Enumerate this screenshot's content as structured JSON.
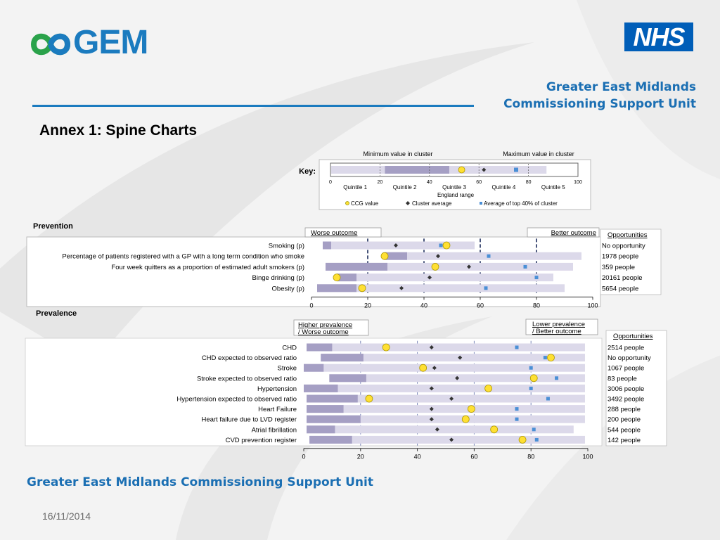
{
  "header": {
    "gem_logo_text": "GEM",
    "nhs_logo_text": "NHS",
    "org_line1": "Greater East Midlands",
    "org_line2": "Commissioning Support Unit",
    "title": "Annex 1: Spine Charts"
  },
  "footer": {
    "org": "Greater East Midlands Commissioning Support Unit",
    "date": "16/11/2014"
  },
  "colors": {
    "brand_blue": "#1b7bbf",
    "nhs_blue": "#005eb8",
    "range_bar": "#dcd9ea",
    "cluster_bar": "#a59fc4",
    "ccg_marker": "#ffe033",
    "cluster_avg_marker": "#333333",
    "top40_marker": "#4a8fd6"
  },
  "chart_data": [
    {
      "type": "key",
      "key_label": "Key:",
      "min_label": "Minimum value in cluster",
      "max_label": "Maximum value in cluster",
      "ticks": [
        "0",
        "20",
        "40",
        "60",
        "80",
        "100"
      ],
      "quintiles": [
        "Quintile 1",
        "Quintile 2",
        "Quintile 3",
        "Quintile 4",
        "Quintile 5"
      ],
      "axis_label": "England range",
      "example": {
        "range": [
          0,
          87
        ],
        "cluster": [
          22,
          48
        ],
        "ccg": 53,
        "avg": 62,
        "top": 75
      },
      "legend": {
        "ccg": "CCG value",
        "avg": "Cluster average",
        "top": "Average of top 40% of cluster"
      }
    },
    {
      "type": "spine",
      "section": "Prevention",
      "worse_label": "Worse outcome",
      "better_label": "Better outcome",
      "opportunities_header": "Opportunities",
      "xlim": [
        0,
        100
      ],
      "ticks": [
        "0",
        "20",
        "40",
        "60",
        "80",
        "100"
      ],
      "rows": [
        {
          "label": "Smoking (p)",
          "range": [
            4,
            58
          ],
          "cluster": [
            4,
            7
          ],
          "ccg": 48,
          "avg": 30,
          "top": 46,
          "opportunity": "No opportunity"
        },
        {
          "label": "Percentage of patients registered with a GP with a long term condition who smoke",
          "range": [
            26,
            96
          ],
          "cluster": [
            26,
            34
          ],
          "ccg": 26,
          "avg": 45,
          "top": 63,
          "opportunity": "1978  people"
        },
        {
          "label": "Four week quitters as a proportion of estimated adult smokers (p)",
          "range": [
            5,
            93
          ],
          "cluster": [
            5,
            27
          ],
          "ccg": 44,
          "avg": 56,
          "top": 76,
          "opportunity": "359  people"
        },
        {
          "label": "Binge drinking (p)",
          "range": [
            9,
            86
          ],
          "cluster": [
            9,
            16
          ],
          "ccg": 9,
          "avg": 42,
          "top": 80,
          "opportunity": "20161  people"
        },
        {
          "label": "Obesity (p)",
          "range": [
            2,
            90
          ],
          "cluster": [
            2,
            16
          ],
          "ccg": 18,
          "avg": 32,
          "top": 62,
          "opportunity": "5654  people"
        }
      ]
    },
    {
      "type": "spine",
      "section": "Prevalence",
      "worse_label": "Higher prevalence / Worse outcome",
      "better_label": "Lower  prevalence / Better outcome",
      "opportunities_header": "Opportunities",
      "xlim": [
        0,
        100
      ],
      "ticks": [
        "0",
        "20",
        "40",
        "60",
        "80",
        "100"
      ],
      "rows": [
        {
          "label": "CHD",
          "range": [
            1,
            99
          ],
          "cluster": [
            1,
            10
          ],
          "ccg": 29,
          "avg": 45,
          "top": 75,
          "opportunity": "2514  people"
        },
        {
          "label": "CHD expected to observed ratio",
          "range": [
            6,
            99
          ],
          "cluster": [
            6,
            21
          ],
          "ccg": 87,
          "avg": 55,
          "top": 85,
          "opportunity": "No opportunity"
        },
        {
          "label": "Stroke",
          "range": [
            0,
            99
          ],
          "cluster": [
            0,
            7
          ],
          "ccg": 42,
          "avg": 46,
          "top": 80,
          "opportunity": "1067  people"
        },
        {
          "label": "Stroke expected to observed ratio",
          "range": [
            9,
            99
          ],
          "cluster": [
            9,
            22
          ],
          "ccg": 81,
          "avg": 54,
          "top": 89,
          "opportunity": "83  people"
        },
        {
          "label": "Hypertension",
          "range": [
            0,
            99
          ],
          "cluster": [
            0,
            12
          ],
          "ccg": 65,
          "avg": 45,
          "top": 80,
          "opportunity": "3006  people"
        },
        {
          "label": "Hypertension expected to observed ratio",
          "range": [
            1,
            99
          ],
          "cluster": [
            1,
            19
          ],
          "ccg": 23,
          "avg": 52,
          "top": 86,
          "opportunity": "3492  people"
        },
        {
          "label": "Heart Failure",
          "range": [
            1,
            99
          ],
          "cluster": [
            1,
            14
          ],
          "ccg": 59,
          "avg": 45,
          "top": 75,
          "opportunity": "288  people"
        },
        {
          "label": "Heart failure due to LVD register",
          "range": [
            1,
            99
          ],
          "cluster": [
            1,
            20
          ],
          "ccg": 57,
          "avg": 45,
          "top": 75,
          "opportunity": "200  people"
        },
        {
          "label": "Atrial fibrillation",
          "range": [
            1,
            95
          ],
          "cluster": [
            1,
            11
          ],
          "ccg": 67,
          "avg": 47,
          "top": 81,
          "opportunity": "544  people"
        },
        {
          "label": "CVD prevention register",
          "range": [
            2,
            99
          ],
          "cluster": [
            2,
            17
          ],
          "ccg": 77,
          "avg": 52,
          "top": 82,
          "opportunity": "142  people"
        }
      ]
    }
  ]
}
